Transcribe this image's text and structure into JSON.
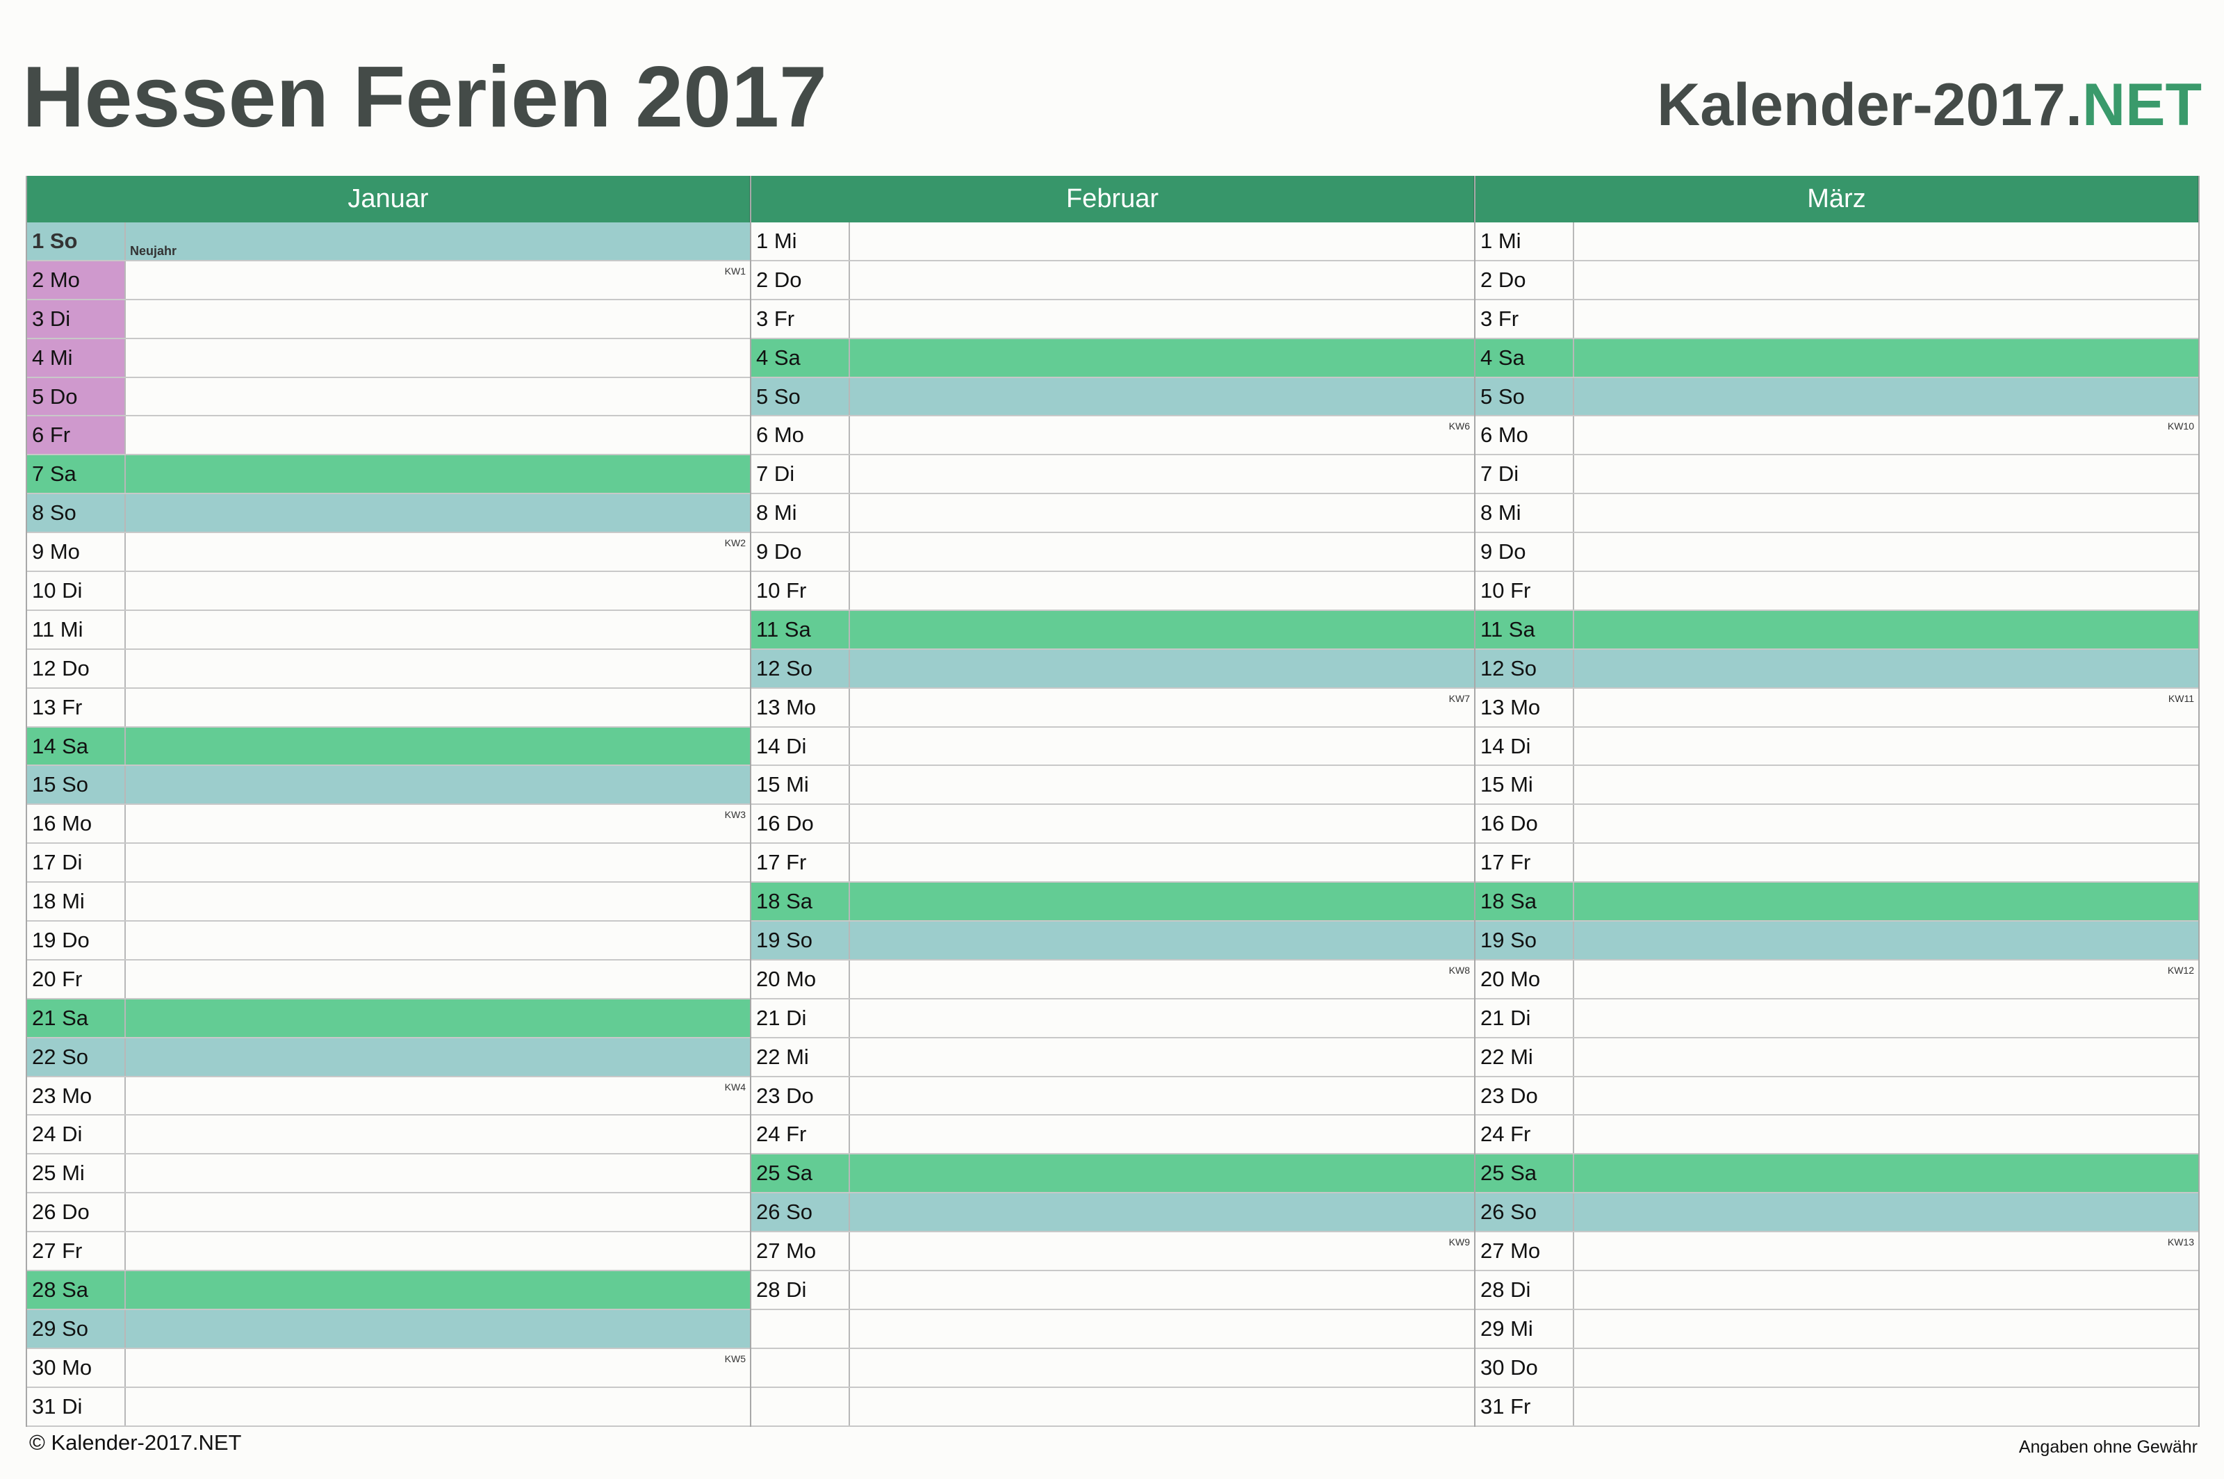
{
  "header": {
    "title": "Hessen Ferien 2017",
    "brand_main": "Kalender-2017.",
    "brand_net": "NET"
  },
  "colors": {
    "header_green": "#37966a",
    "saturday": "#63cc94",
    "sunday_holiday": "#9ccdcc",
    "school_vacation": "#cf99cd",
    "brand_accent": "#3a9a6b"
  },
  "months": [
    {
      "name": "Januar",
      "days": [
        {
          "label": "1 So",
          "type": "feiertag",
          "holiday": "Neujahr"
        },
        {
          "label": "2 Mo",
          "type": "fer",
          "kw": "KW1"
        },
        {
          "label": "3 Di",
          "type": "fer"
        },
        {
          "label": "4 Mi",
          "type": "fer"
        },
        {
          "label": "5 Do",
          "type": "fer"
        },
        {
          "label": "6 Fr",
          "type": "fer"
        },
        {
          "label": "7 Sa",
          "type": "sa"
        },
        {
          "label": "8 So",
          "type": "so"
        },
        {
          "label": "9 Mo",
          "type": "",
          "kw": "KW2"
        },
        {
          "label": "10 Di",
          "type": ""
        },
        {
          "label": "11 Mi",
          "type": ""
        },
        {
          "label": "12 Do",
          "type": ""
        },
        {
          "label": "13 Fr",
          "type": ""
        },
        {
          "label": "14 Sa",
          "type": "sa"
        },
        {
          "label": "15 So",
          "type": "so"
        },
        {
          "label": "16 Mo",
          "type": "",
          "kw": "KW3"
        },
        {
          "label": "17 Di",
          "type": ""
        },
        {
          "label": "18 Mi",
          "type": ""
        },
        {
          "label": "19 Do",
          "type": ""
        },
        {
          "label": "20 Fr",
          "type": ""
        },
        {
          "label": "21 Sa",
          "type": "sa"
        },
        {
          "label": "22 So",
          "type": "so"
        },
        {
          "label": "23 Mo",
          "type": "",
          "kw": "KW4"
        },
        {
          "label": "24 Di",
          "type": ""
        },
        {
          "label": "25 Mi",
          "type": ""
        },
        {
          "label": "26 Do",
          "type": ""
        },
        {
          "label": "27 Fr",
          "type": ""
        },
        {
          "label": "28 Sa",
          "type": "sa"
        },
        {
          "label": "29 So",
          "type": "so"
        },
        {
          "label": "30 Mo",
          "type": "",
          "kw": "KW5"
        },
        {
          "label": "31 Di",
          "type": ""
        }
      ]
    },
    {
      "name": "Februar",
      "days": [
        {
          "label": "1 Mi",
          "type": ""
        },
        {
          "label": "2 Do",
          "type": ""
        },
        {
          "label": "3 Fr",
          "type": ""
        },
        {
          "label": "4 Sa",
          "type": "sa"
        },
        {
          "label": "5 So",
          "type": "so"
        },
        {
          "label": "6 Mo",
          "type": "",
          "kw": "KW6"
        },
        {
          "label": "7 Di",
          "type": ""
        },
        {
          "label": "8 Mi",
          "type": ""
        },
        {
          "label": "9 Do",
          "type": ""
        },
        {
          "label": "10 Fr",
          "type": ""
        },
        {
          "label": "11 Sa",
          "type": "sa"
        },
        {
          "label": "12 So",
          "type": "so"
        },
        {
          "label": "13 Mo",
          "type": "",
          "kw": "KW7"
        },
        {
          "label": "14 Di",
          "type": ""
        },
        {
          "label": "15 Mi",
          "type": ""
        },
        {
          "label": "16 Do",
          "type": ""
        },
        {
          "label": "17 Fr",
          "type": ""
        },
        {
          "label": "18 Sa",
          "type": "sa"
        },
        {
          "label": "19 So",
          "type": "so"
        },
        {
          "label": "20 Mo",
          "type": "",
          "kw": "KW8"
        },
        {
          "label": "21 Di",
          "type": ""
        },
        {
          "label": "22 Mi",
          "type": ""
        },
        {
          "label": "23 Do",
          "type": ""
        },
        {
          "label": "24 Fr",
          "type": ""
        },
        {
          "label": "25 Sa",
          "type": "sa"
        },
        {
          "label": "26 So",
          "type": "so"
        },
        {
          "label": "27 Mo",
          "type": "",
          "kw": "KW9"
        },
        {
          "label": "28 Di",
          "type": ""
        },
        {
          "label": "",
          "type": "empty"
        },
        {
          "label": "",
          "type": "empty"
        },
        {
          "label": "",
          "type": "empty"
        }
      ]
    },
    {
      "name": "März",
      "days": [
        {
          "label": "1 Mi",
          "type": ""
        },
        {
          "label": "2 Do",
          "type": ""
        },
        {
          "label": "3 Fr",
          "type": ""
        },
        {
          "label": "4 Sa",
          "type": "sa"
        },
        {
          "label": "5 So",
          "type": "so"
        },
        {
          "label": "6 Mo",
          "type": "",
          "kw": "KW10"
        },
        {
          "label": "7 Di",
          "type": ""
        },
        {
          "label": "8 Mi",
          "type": ""
        },
        {
          "label": "9 Do",
          "type": ""
        },
        {
          "label": "10 Fr",
          "type": ""
        },
        {
          "label": "11 Sa",
          "type": "sa"
        },
        {
          "label": "12 So",
          "type": "so"
        },
        {
          "label": "13 Mo",
          "type": "",
          "kw": "KW11"
        },
        {
          "label": "14 Di",
          "type": ""
        },
        {
          "label": "15 Mi",
          "type": ""
        },
        {
          "label": "16 Do",
          "type": ""
        },
        {
          "label": "17 Fr",
          "type": ""
        },
        {
          "label": "18 Sa",
          "type": "sa"
        },
        {
          "label": "19 So",
          "type": "so"
        },
        {
          "label": "20 Mo",
          "type": "",
          "kw": "KW12"
        },
        {
          "label": "21 Di",
          "type": ""
        },
        {
          "label": "22 Mi",
          "type": ""
        },
        {
          "label": "23 Do",
          "type": ""
        },
        {
          "label": "24 Fr",
          "type": ""
        },
        {
          "label": "25 Sa",
          "type": "sa"
        },
        {
          "label": "26 So",
          "type": "so"
        },
        {
          "label": "27 Mo",
          "type": "",
          "kw": "KW13"
        },
        {
          "label": "28 Di",
          "type": ""
        },
        {
          "label": "29 Mi",
          "type": ""
        },
        {
          "label": "30 Do",
          "type": ""
        },
        {
          "label": "31 Fr",
          "type": ""
        }
      ]
    }
  ],
  "footer": {
    "copyright": "© Kalender-2017.NET",
    "disclaimer": "Angaben ohne Gewähr"
  }
}
